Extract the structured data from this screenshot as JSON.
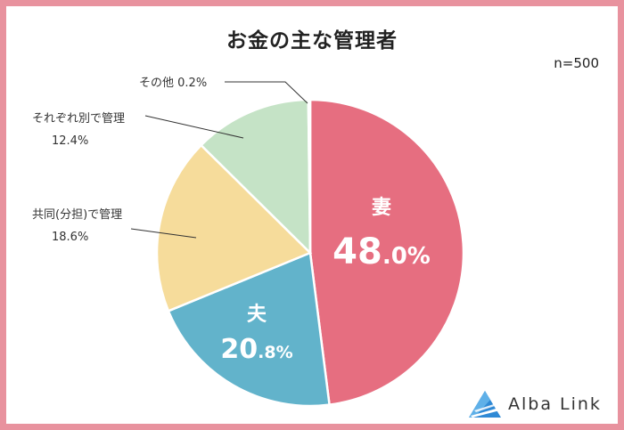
{
  "title": "お金の主な管理者",
  "sample_size": "n=500",
  "brand": "Alba Link",
  "colors": {
    "border": "#e8929e",
    "wife": "#e66e80",
    "husband": "#62b3cb",
    "shared": "#f6dc9b",
    "separate": "#c5e3c6",
    "other": "#e9e9e9",
    "logo": "#2f89d5"
  },
  "chart_data": {
    "type": "pie",
    "slices": [
      {
        "label": "妻",
        "value": 48.0,
        "display": "48.0%",
        "color": "#e66e80"
      },
      {
        "label": "夫",
        "value": 20.8,
        "display": "20.8%",
        "color": "#62b3cb"
      },
      {
        "label": "共同(分担)で管理",
        "value": 18.6,
        "display": "18.6%",
        "color": "#f6dc9b"
      },
      {
        "label": "それぞれ別で管理",
        "value": 12.4,
        "display": "12.4%",
        "color": "#c5e3c6"
      },
      {
        "label": "その他",
        "value": 0.2,
        "display": "0.2%",
        "color": "#e9e9e9"
      }
    ]
  }
}
